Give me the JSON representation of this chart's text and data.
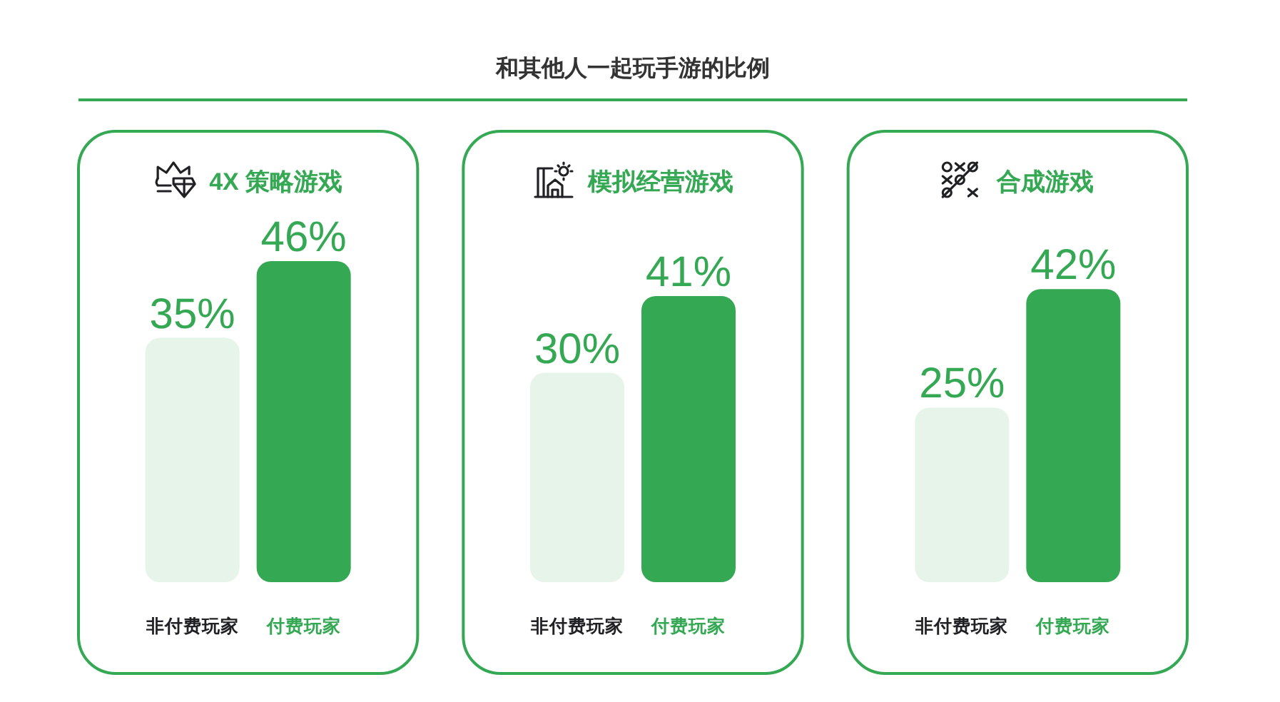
{
  "chart_data": [
    {
      "type": "other",
      "title": "和其他人一起玩手游的比例"
    },
    {
      "type": "bar",
      "title": "4X 策略游戏",
      "categories": [
        "非付费玩家",
        "付费玩家"
      ],
      "values": [
        35,
        46
      ],
      "value_labels": [
        "35%",
        "46%"
      ],
      "colors": [
        "#e6f4ea",
        "#34a853"
      ]
    },
    {
      "type": "bar",
      "title": "模拟经营游戏",
      "categories": [
        "非付费玩家",
        "付费玩家"
      ],
      "values": [
        30,
        41
      ],
      "value_labels": [
        "30%",
        "41%"
      ],
      "colors": [
        "#e6f4ea",
        "#34a853"
      ]
    },
    {
      "type": "bar",
      "title": "合成游戏",
      "categories": [
        "非付费玩家",
        "付费玩家"
      ],
      "values": [
        25,
        42
      ],
      "value_labels": [
        "25%",
        "42%"
      ],
      "colors": [
        "#e6f4ea",
        "#34a853"
      ]
    }
  ]
}
